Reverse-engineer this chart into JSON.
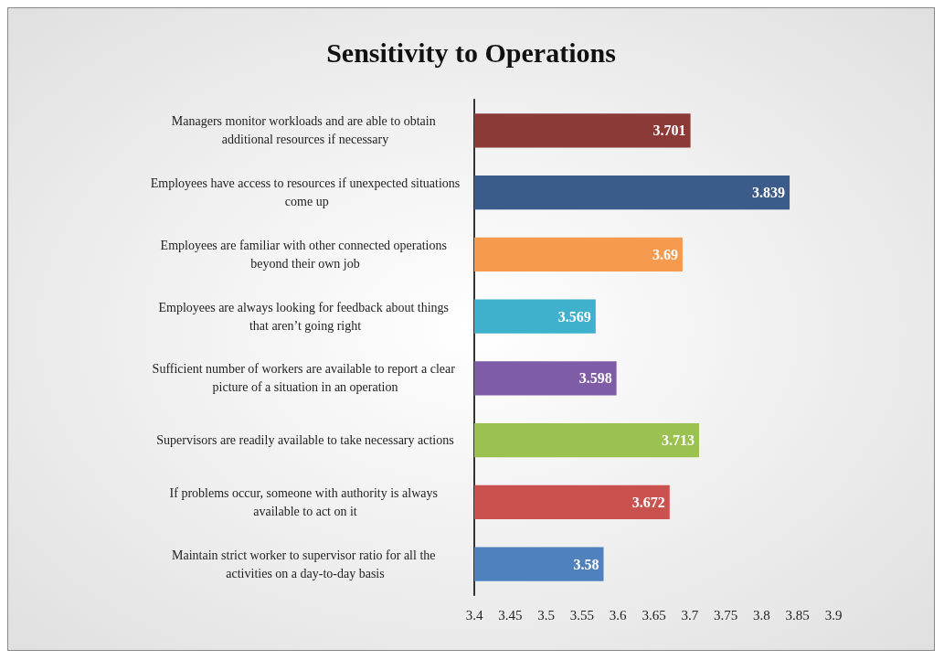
{
  "chart_data": {
    "type": "bar",
    "orientation": "horizontal",
    "title": "Sensitivity to Operations",
    "categories": [
      "Managers monitor workloads and are able to obtain additional resources if necessary",
      "Employees have access to resources if unexpected situations come up",
      "Employees are familiar with other connected operations beyond their own job",
      "Employees are always looking for feedback about things that aren’t going right",
      "Sufficient number of workers are available to report a clear picture of a situation in an operation",
      "Supervisors are readily available to take necessary actions",
      "If problems occur, someone with authority is always available to act on it",
      "Maintain strict worker to supervisor ratio for all the activities on a day-to-day basis"
    ],
    "values": [
      3.701,
      3.839,
      3.69,
      3.569,
      3.598,
      3.713,
      3.672,
      3.58
    ],
    "colors": [
      "#8b3a37",
      "#3b5b8a",
      "#f59a4f",
      "#3fb1cc",
      "#7e5ca6",
      "#9bc150",
      "#c9514e",
      "#4f81bd"
    ],
    "xlim": [
      3.4,
      3.9
    ],
    "xticks": [
      3.4,
      3.45,
      3.5,
      3.55,
      3.6,
      3.65,
      3.7,
      3.75,
      3.8,
      3.85,
      3.9
    ],
    "data_labels": true
  }
}
